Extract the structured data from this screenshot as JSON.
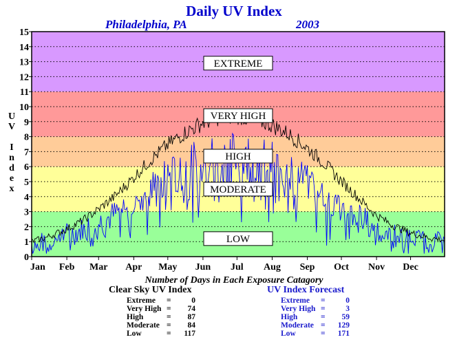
{
  "title": "Daily UV Index",
  "city": "Philadelphia, PA",
  "year": "2003",
  "ylabel_letters": [
    "U",
    "V",
    "",
    "I",
    "n",
    "d",
    "e",
    "x"
  ],
  "colors": {
    "low": "#99ff99",
    "moderate": "#ffff99",
    "high": "#ffcc99",
    "very_high": "#ff9999",
    "extreme": "#d899ff",
    "clear_sky_line": "#000000",
    "forecast_line": "#0000ff",
    "title": "#0000cc"
  },
  "chart_data": {
    "type": "line",
    "title": "Daily UV Index",
    "ylabel": "UV Index",
    "xlabel": "",
    "ylim": [
      0,
      15
    ],
    "yticks": [
      0,
      1,
      2,
      3,
      4,
      5,
      6,
      7,
      8,
      9,
      10,
      11,
      12,
      13,
      14,
      15
    ],
    "xticks": [
      "Jan",
      "Feb",
      "Mar",
      "Apr",
      "May",
      "Jun",
      "Jul",
      "Aug",
      "Sep",
      "Oct",
      "Nov",
      "Dec"
    ],
    "xlim_days": [
      1,
      365
    ],
    "grid": "horizontal dotted",
    "bands": [
      {
        "label": "LOW",
        "from": 0,
        "to": 3,
        "color": "#99ff99"
      },
      {
        "label": "MODERATE",
        "from": 3,
        "to": 6,
        "color": "#ffff99"
      },
      {
        "label": "HIGH",
        "from": 6,
        "to": 8,
        "color": "#ffcc99"
      },
      {
        "label": "VERY HIGH",
        "from": 8,
        "to": 11,
        "color": "#ff9999"
      },
      {
        "label": "EXTREME",
        "from": 11,
        "to": 15,
        "color": "#d899ff"
      }
    ],
    "band_label_positions": [
      {
        "label": "LOW",
        "y": 1.2
      },
      {
        "label": "MODERATE",
        "y": 4.5
      },
      {
        "label": "HIGH",
        "y": 6.7
      },
      {
        "label": "VERY HIGH",
        "y": 9.4
      },
      {
        "label": "EXTREME",
        "y": 12.9
      }
    ],
    "series": [
      {
        "name": "Clear Sky UV Index",
        "color": "#000000",
        "x": [
          1,
          15,
          31,
          46,
          59,
          74,
          90,
          105,
          120,
          135,
          151,
          166,
          181,
          196,
          212,
          227,
          243,
          258,
          273,
          288,
          304,
          319,
          334,
          349,
          365
        ],
        "values": [
          1.0,
          1.3,
          1.8,
          2.4,
          3.1,
          4.0,
          5.2,
          6.4,
          7.4,
          8.2,
          8.9,
          9.3,
          9.4,
          9.2,
          8.8,
          8.2,
          7.3,
          6.3,
          5.1,
          4.0,
          2.8,
          2.1,
          1.6,
          1.3,
          1.1
        ]
      },
      {
        "name": "UV Index Forecast",
        "color": "#0000ff",
        "x": [
          1,
          15,
          31,
          46,
          59,
          74,
          90,
          105,
          120,
          135,
          151,
          166,
          181,
          196,
          212,
          227,
          243,
          258,
          273,
          288,
          304,
          319,
          334,
          349,
          365
        ],
        "values": [
          0.8,
          1.0,
          1.4,
          1.8,
          2.2,
          2.8,
          3.6,
          4.5,
          5.2,
          5.8,
          6.4,
          6.8,
          6.9,
          6.6,
          6.2,
          5.8,
          5.0,
          4.2,
          3.3,
          2.7,
          2.0,
          1.5,
          1.2,
          1.0,
          0.9
        ]
      }
    ]
  },
  "counts": {
    "heading": "Number of Days in Each Exposure Catagory",
    "clear": {
      "title": "Clear Sky UV Index",
      "rows": [
        {
          "label": "Extreme",
          "value": "0"
        },
        {
          "label": "Very High",
          "value": "74"
        },
        {
          "label": "High",
          "value": "87"
        },
        {
          "label": "Moderate",
          "value": "84"
        },
        {
          "label": "Low",
          "value": "117"
        }
      ]
    },
    "forecast": {
      "title": "UV Index Forecast",
      "rows": [
        {
          "label": "Extreme",
          "value": "0"
        },
        {
          "label": "Very High",
          "value": "3"
        },
        {
          "label": "High",
          "value": "59"
        },
        {
          "label": "Moderate",
          "value": "129"
        },
        {
          "label": "Low",
          "value": "171"
        }
      ]
    }
  }
}
